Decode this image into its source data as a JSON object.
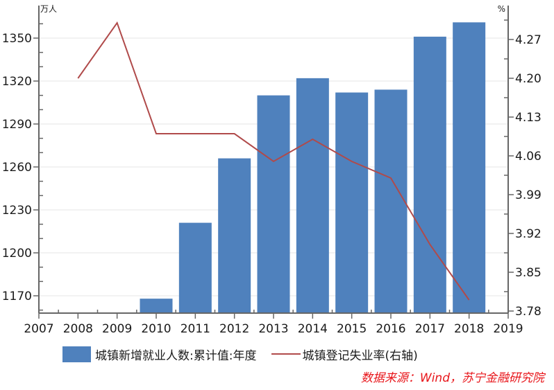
{
  "chart_data": {
    "type": "bar+line",
    "title": "",
    "x": [
      "2007",
      "2008",
      "2009",
      "2010",
      "2011",
      "2012",
      "2013",
      "2014",
      "2015",
      "2016",
      "2017",
      "2018",
      "2019"
    ],
    "categories": [
      "2010",
      "2011",
      "2012",
      "2013",
      "2014",
      "2015",
      "2016",
      "2017",
      "2018"
    ],
    "series": [
      {
        "name": "城镇新增就业人数:累计值:年度",
        "type": "bar",
        "axis": "left",
        "color": "#4F81BD",
        "x": [
          "2010",
          "2011",
          "2012",
          "2013",
          "2014",
          "2015",
          "2016",
          "2017",
          "2018"
        ],
        "values": [
          1168,
          1221,
          1266,
          1310,
          1322,
          1312,
          1314,
          1351,
          1361
        ]
      },
      {
        "name": "城镇登记失业率(右轴)",
        "type": "line",
        "axis": "right",
        "color": "#B04A4A",
        "x": [
          "2008",
          "2009",
          "2010",
          "2011",
          "2012",
          "2013",
          "2014",
          "2015",
          "2016",
          "2017",
          "2018"
        ],
        "values": [
          4.2,
          4.3,
          4.1,
          4.1,
          4.1,
          4.05,
          4.09,
          4.05,
          4.02,
          3.9,
          3.8
        ]
      }
    ],
    "left_axis": {
      "unit": "万人",
      "ticks": [
        "1170",
        "1200",
        "1230",
        "1260",
        "1290",
        "1320",
        "1350"
      ],
      "ylim": [
        1158,
        1368
      ]
    },
    "right_axis": {
      "unit": "%",
      "ticks": [
        "3.78",
        "3.85",
        "3.92",
        "3.99",
        "4.06",
        "4.13",
        "4.20",
        "4.27"
      ],
      "ylim": [
        3.78,
        4.31
      ]
    },
    "xlabel": "",
    "grid": "horizontal",
    "legend_position": "bottom"
  },
  "legend": {
    "bar_label": "城镇新增就业人数:累计值:年度",
    "line_label": "城镇登记失业率(右轴)"
  },
  "source": "数据来源：Wind，苏宁金融研究院"
}
